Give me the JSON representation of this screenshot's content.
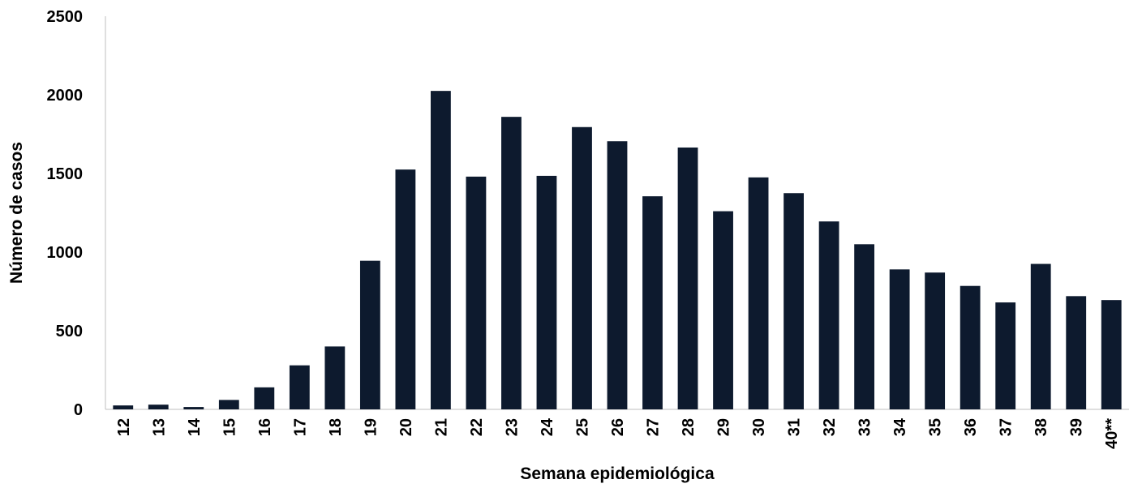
{
  "chart_data": {
    "type": "bar",
    "title": "",
    "xlabel": "Semana epidemiológica",
    "ylabel": "Número de casos",
    "ylim": [
      0,
      2500
    ],
    "yticks": [
      0,
      500,
      1000,
      1500,
      2000,
      2500
    ],
    "grid": false,
    "legend": "none",
    "bar_color": "#0d1a2e",
    "categories": [
      "12",
      "13",
      "14",
      "15",
      "16",
      "17",
      "18",
      "19",
      "20",
      "21",
      "22",
      "23",
      "24",
      "25",
      "26",
      "27",
      "28",
      "29",
      "30",
      "31",
      "32",
      "33",
      "34",
      "35",
      "36",
      "37",
      "38",
      "39",
      "40**"
    ],
    "values": [
      25,
      30,
      15,
      60,
      140,
      280,
      400,
      945,
      1525,
      2025,
      1480,
      1860,
      1485,
      1795,
      1705,
      1355,
      1665,
      1260,
      1475,
      1375,
      1195,
      1050,
      890,
      870,
      785,
      680,
      925,
      720,
      695
    ]
  }
}
